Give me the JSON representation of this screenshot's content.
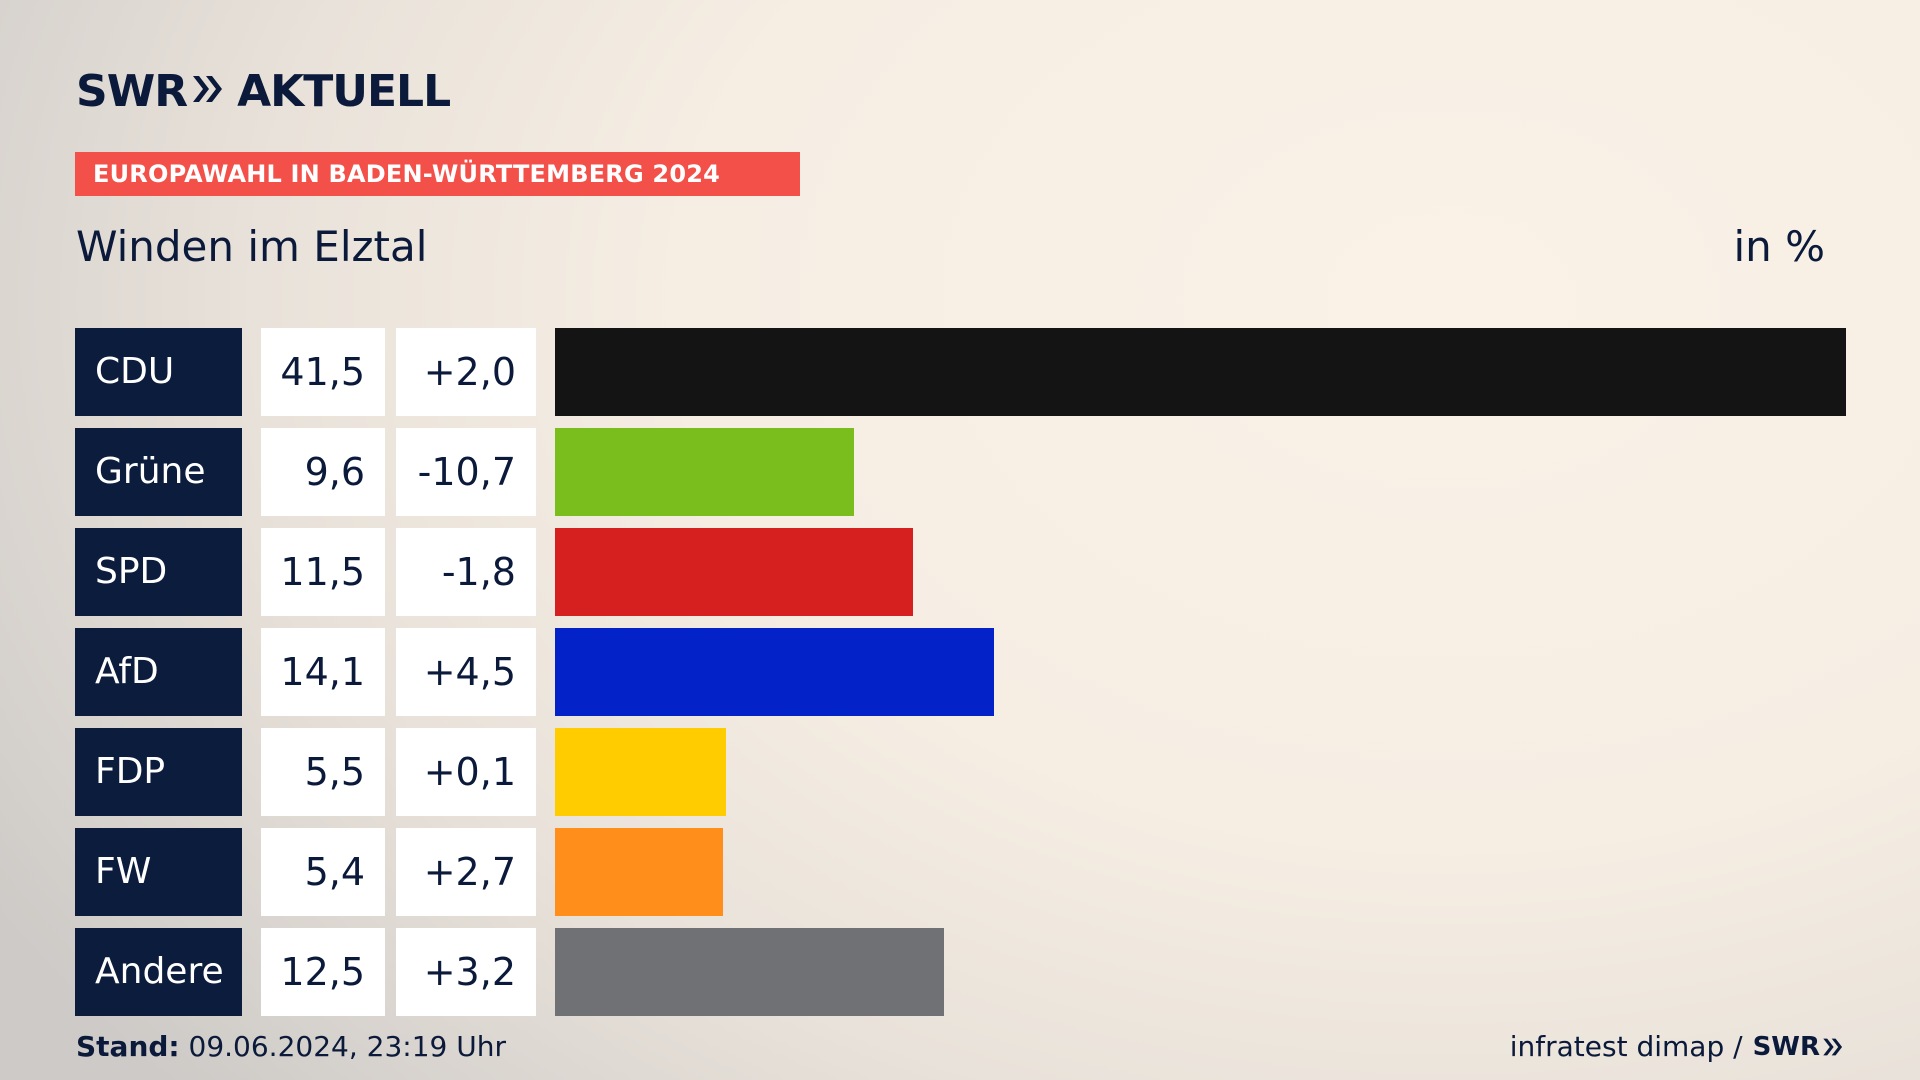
{
  "header": {
    "brand_left": "SWR",
    "brand_right": "AKTUELL",
    "banner": "EUROPAWAHL IN BADEN-WÜRTTEMBERG 2024",
    "subtitle": "Winden im Elztal",
    "unit": "in %"
  },
  "chart_data": {
    "type": "bar",
    "orientation": "horizontal",
    "title": "Winden im Elztal",
    "unit": "in %",
    "categories": [
      "CDU",
      "Grüne",
      "SPD",
      "AfD",
      "FDP",
      "FW",
      "Andere"
    ],
    "values": [
      41.5,
      9.6,
      11.5,
      14.1,
      5.5,
      5.4,
      12.5
    ],
    "value_labels": [
      "41,5",
      "9,6",
      "11,5",
      "14,1",
      "5,5",
      "5,4",
      "12,5"
    ],
    "change_labels": [
      "+2,0",
      "-10,7",
      "-1,8",
      "+4,5",
      "+0,1",
      "+2,7",
      "+3,2"
    ],
    "changes": [
      2.0,
      -10.7,
      -1.8,
      4.5,
      0.1,
      2.7,
      3.2
    ],
    "colors": [
      "#141414",
      "#7abe1e",
      "#d61f1f",
      "#0322c8",
      "#ffcc00",
      "#ff8e1a",
      "#707174"
    ],
    "xlim": [
      0,
      41.5
    ],
    "grid": false,
    "legend": "none"
  },
  "footer": {
    "stand_label": "Stand:",
    "stand_value": " 09.06.2024, 23:19 Uhr",
    "source": "infratest dimap /",
    "source_brand": "SWR"
  }
}
